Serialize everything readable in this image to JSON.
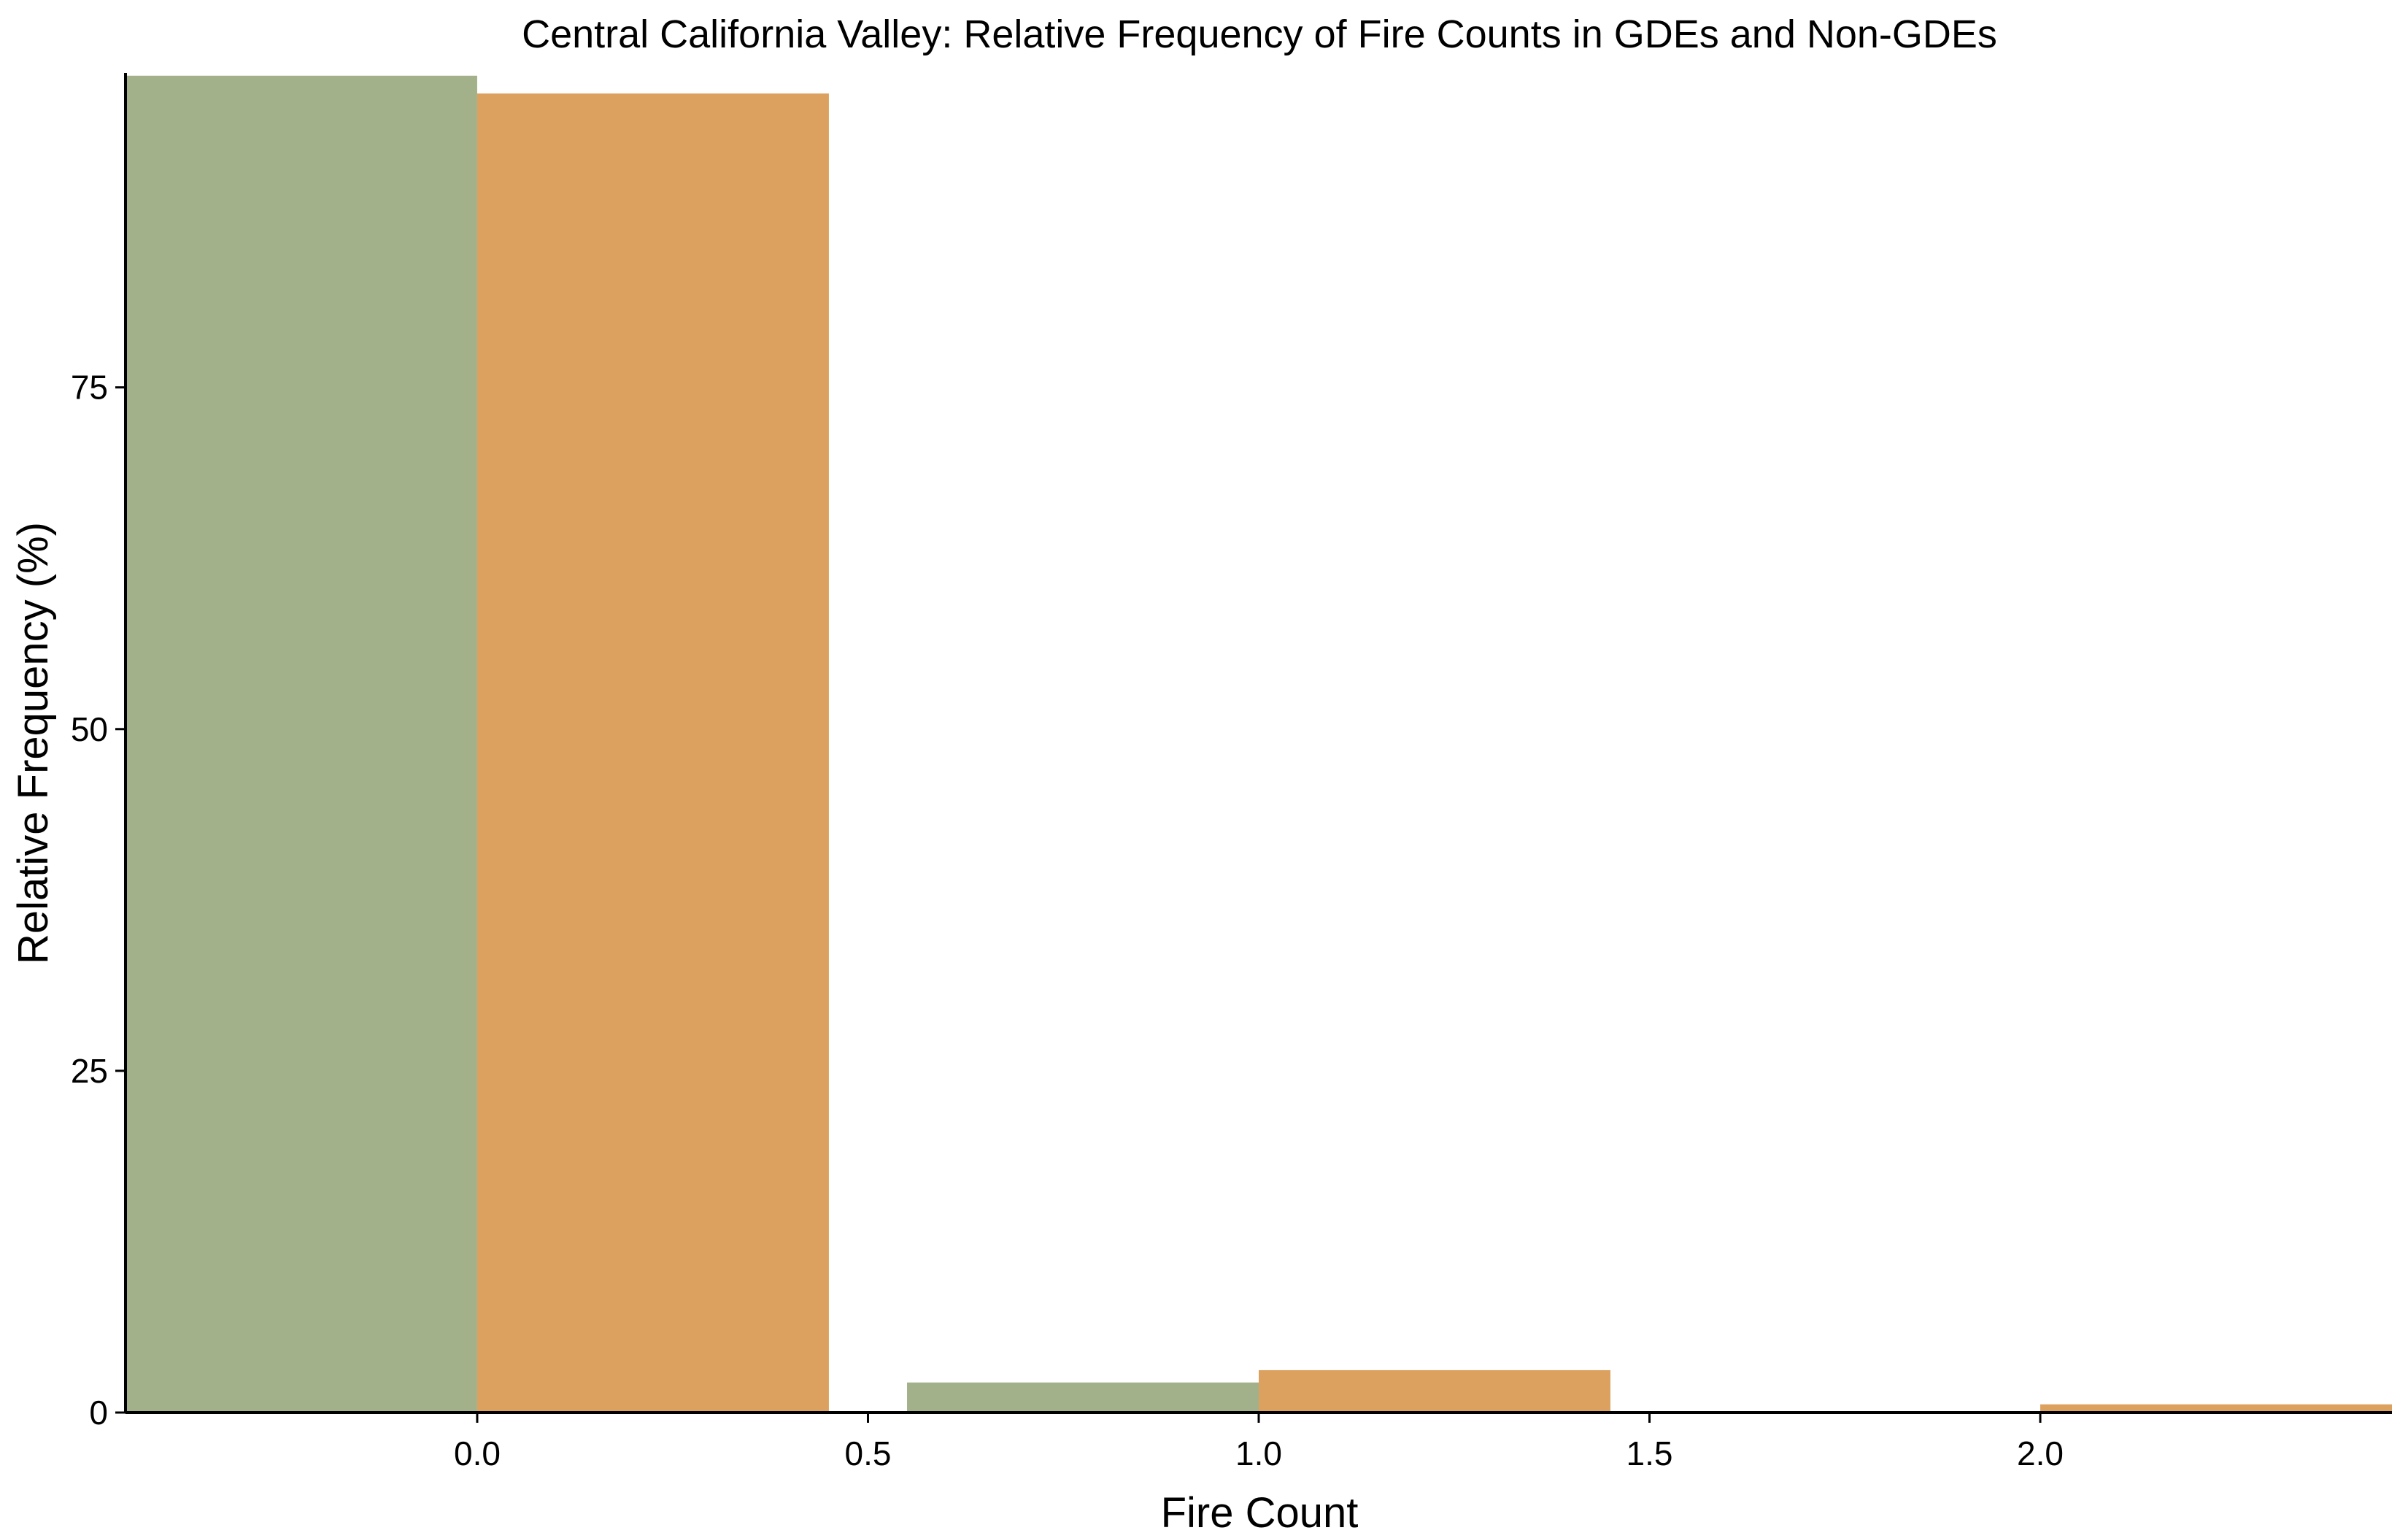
{
  "chart_data": {
    "type": "bar",
    "title": "Central California Valley: Relative Frequency of Fire Counts in GDEs and Non-GDEs",
    "xlabel": "Fire Count",
    "ylabel": "Relative Frequency (%)",
    "xlim": [
      -0.45,
      2.45
    ],
    "ylim": [
      0,
      98
    ],
    "x_ticks": [
      0.0,
      0.5,
      1.0,
      1.5,
      2.0
    ],
    "x_tick_labels": [
      "0.0",
      "0.5",
      "1.0",
      "1.5",
      "2.0"
    ],
    "y_ticks": [
      0,
      25,
      50,
      75
    ],
    "y_tick_labels": [
      "0",
      "25",
      "50",
      "75"
    ],
    "bar_width": 0.45,
    "grid": false,
    "legend": "none",
    "series": [
      {
        "color": "#a2b18a",
        "offset": -0.225,
        "x": [
          0,
          1,
          2
        ],
        "values": [
          97.8,
          2.2,
          0.1
        ]
      },
      {
        "color": "#dca15e",
        "offset": 0.225,
        "x": [
          0,
          1,
          2
        ],
        "values": [
          96.5,
          3.1,
          0.6
        ]
      }
    ]
  }
}
